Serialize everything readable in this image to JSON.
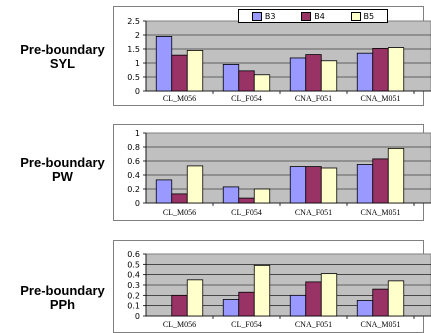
{
  "legend": [
    {
      "name": "B3",
      "color": "#9999ff"
    },
    {
      "name": "B4",
      "color": "#993366"
    },
    {
      "name": "B5",
      "color": "#ffffcc"
    }
  ],
  "chart_data": [
    {
      "type": "bar",
      "row_label": [
        "Pre-boundary",
        "SYL"
      ],
      "categories": [
        "CL_M056",
        "CL_F054",
        "CNA_F051",
        "CNA_M051"
      ],
      "series": [
        {
          "name": "B3",
          "values": [
            1.95,
            0.95,
            1.18,
            1.35
          ]
        },
        {
          "name": "B4",
          "values": [
            1.28,
            0.72,
            1.3,
            1.52
          ]
        },
        {
          "name": "B5",
          "values": [
            1.45,
            0.58,
            1.08,
            1.55
          ]
        }
      ],
      "ylim": [
        0,
        2.5
      ],
      "yticks": [
        "0",
        "0.5",
        "1",
        "1.5",
        "2",
        "2.5"
      ],
      "grid": true
    },
    {
      "type": "bar",
      "row_label": [
        "Pre-boundary",
        "PW"
      ],
      "categories": [
        "CL_M056",
        "CL_F054",
        "CNA_F051",
        "CNA_M051"
      ],
      "series": [
        {
          "name": "B3",
          "values": [
            0.33,
            0.23,
            0.52,
            0.55
          ]
        },
        {
          "name": "B4",
          "values": [
            0.13,
            0.07,
            0.52,
            0.63
          ]
        },
        {
          "name": "B5",
          "values": [
            0.53,
            0.2,
            0.5,
            0.78
          ]
        }
      ],
      "ylim": [
        0,
        1
      ],
      "yticks": [
        "0",
        "0.2",
        "0.4",
        "0.6",
        "0.8",
        "1"
      ],
      "grid": true
    },
    {
      "type": "bar",
      "row_label": [
        "Pre-boundary",
        "PPh"
      ],
      "categories": [
        "CL_M056",
        "CL_F054",
        "CNA_F051",
        "CNA_M051"
      ],
      "series": [
        {
          "name": "B3",
          "values": [
            0.0,
            0.16,
            0.2,
            0.15
          ]
        },
        {
          "name": "B4",
          "values": [
            0.2,
            0.23,
            0.33,
            0.26
          ]
        },
        {
          "name": "B5",
          "values": [
            0.35,
            0.49,
            0.41,
            0.34
          ]
        }
      ],
      "ylim": [
        0,
        0.6
      ],
      "yticks": [
        "0",
        "0.1",
        "0.2",
        "0.3",
        "0.4",
        "0.5",
        "0.6"
      ],
      "grid": true
    }
  ]
}
